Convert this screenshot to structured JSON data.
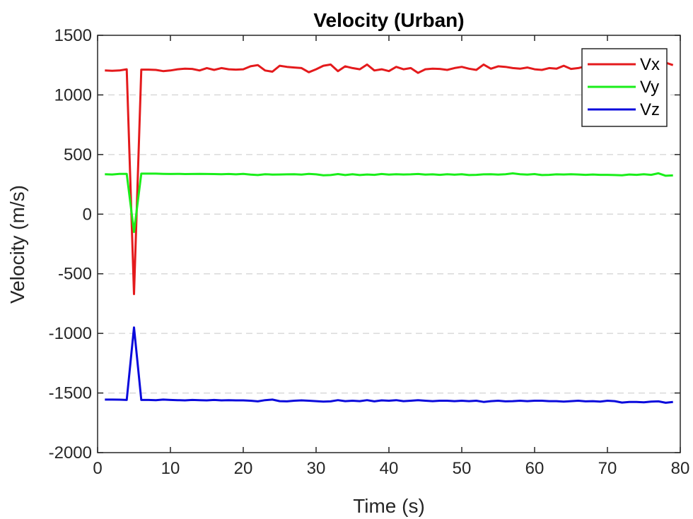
{
  "chart_data": {
    "type": "line",
    "title": "Velocity (Urban)",
    "xlabel": "Time (s)",
    "ylabel": "Velocity (m/s)",
    "xlim": [
      0,
      80
    ],
    "ylim": [
      -2000,
      1500
    ],
    "xticks": [
      0,
      10,
      20,
      30,
      40,
      50,
      60,
      70,
      80
    ],
    "yticks": [
      1500,
      1000,
      500,
      0,
      -500,
      -1000,
      -1500,
      -2000
    ],
    "grid": "horizontal-dashed",
    "legend_position": "top-right",
    "x": [
      1,
      2,
      3,
      4,
      5,
      6,
      7,
      8,
      9,
      10,
      11,
      12,
      13,
      14,
      15,
      16,
      17,
      18,
      19,
      20,
      21,
      22,
      23,
      24,
      25,
      26,
      27,
      28,
      29,
      30,
      31,
      32,
      33,
      34,
      35,
      36,
      37,
      38,
      39,
      40,
      41,
      42,
      43,
      44,
      45,
      46,
      47,
      48,
      49,
      50,
      51,
      52,
      53,
      54,
      55,
      56,
      57,
      58,
      59,
      60,
      61,
      62,
      63,
      64,
      65,
      66,
      67,
      68,
      69,
      70,
      71,
      72,
      73,
      74,
      75,
      76,
      77,
      78,
      79
    ],
    "series": [
      {
        "name": "Vx",
        "color": "#e41a1c",
        "values": [
          1205,
          1203,
          1205,
          1215,
          -670,
          1212,
          1212,
          1210,
          1200,
          1205,
          1215,
          1220,
          1218,
          1205,
          1225,
          1210,
          1225,
          1215,
          1212,
          1215,
          1240,
          1250,
          1205,
          1195,
          1245,
          1235,
          1230,
          1225,
          1190,
          1215,
          1245,
          1255,
          1200,
          1240,
          1225,
          1215,
          1255,
          1205,
          1215,
          1200,
          1235,
          1215,
          1225,
          1185,
          1215,
          1220,
          1218,
          1210,
          1225,
          1235,
          1220,
          1210,
          1255,
          1220,
          1240,
          1235,
          1225,
          1220,
          1230,
          1215,
          1210,
          1225,
          1220,
          1245,
          1218,
          1225,
          1240,
          1240,
          1232,
          1232,
          1225,
          1235,
          1220,
          1212,
          1230,
          1245,
          1240,
          1270,
          1250
        ]
      },
      {
        "name": "Vy",
        "color": "#1aee1a",
        "values": [
          335,
          333,
          338,
          338,
          -150,
          340,
          340,
          340,
          338,
          337,
          338,
          336,
          337,
          338,
          337,
          336,
          335,
          337,
          334,
          338,
          332,
          328,
          335,
          332,
          333,
          334,
          335,
          332,
          338,
          334,
          326,
          328,
          336,
          328,
          335,
          328,
          333,
          330,
          337,
          332,
          335,
          333,
          334,
          337,
          332,
          334,
          330,
          335,
          331,
          335,
          328,
          330,
          334,
          335,
          332,
          335,
          342,
          335,
          332,
          336,
          328,
          330,
          334,
          333,
          335,
          333,
          330,
          333,
          330,
          330,
          328,
          326,
          333,
          330,
          335,
          330,
          343,
          322,
          325
        ]
      },
      {
        "name": "Vz",
        "color": "#0a0adc",
        "values": [
          -1555,
          -1555,
          -1556,
          -1558,
          -950,
          -1558,
          -1558,
          -1560,
          -1555,
          -1558,
          -1560,
          -1562,
          -1558,
          -1560,
          -1562,
          -1558,
          -1562,
          -1560,
          -1562,
          -1562,
          -1565,
          -1570,
          -1560,
          -1555,
          -1568,
          -1570,
          -1565,
          -1562,
          -1565,
          -1568,
          -1572,
          -1570,
          -1560,
          -1568,
          -1565,
          -1568,
          -1560,
          -1570,
          -1562,
          -1565,
          -1560,
          -1568,
          -1565,
          -1560,
          -1565,
          -1568,
          -1565,
          -1565,
          -1568,
          -1565,
          -1568,
          -1565,
          -1575,
          -1568,
          -1565,
          -1570,
          -1568,
          -1565,
          -1568,
          -1565,
          -1565,
          -1568,
          -1568,
          -1572,
          -1568,
          -1565,
          -1570,
          -1568,
          -1572,
          -1565,
          -1568,
          -1580,
          -1575,
          -1575,
          -1578,
          -1572,
          -1570,
          -1582,
          -1575
        ]
      }
    ]
  }
}
